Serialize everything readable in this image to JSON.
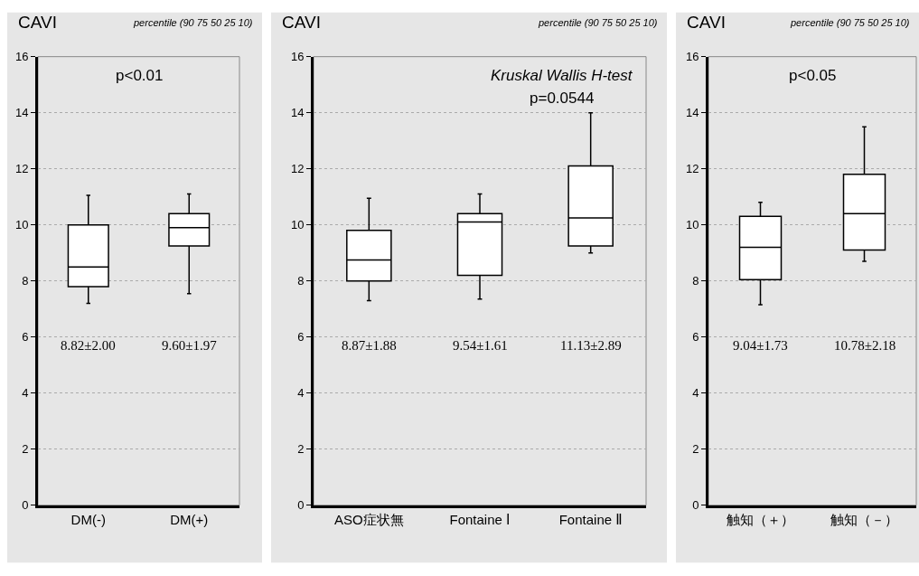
{
  "chart_data": [
    {
      "type": "box",
      "ylabel": "CAVI",
      "subtitle": "percentile (90 75 50 25 10)",
      "categories": [
        "DM(-)",
        "DM(+)"
      ],
      "color": "#ffffff",
      "boxes": [
        {
          "low": 7.2,
          "q1": 7.8,
          "median": 8.5,
          "q3": 10.0,
          "high": 11.05
        },
        {
          "low": 7.55,
          "q1": 9.25,
          "median": 9.9,
          "q3": 10.4,
          "high": 11.1
        }
      ],
      "ylim": [
        0,
        16
      ],
      "yticks": [
        0,
        2,
        4,
        6,
        8,
        10,
        12,
        14,
        16
      ],
      "grid": "y",
      "annotations": [
        "p<0.01",
        "8.82±2.00",
        "9.60±1.97"
      ]
    },
    {
      "type": "box",
      "ylabel": "CAVI",
      "subtitle": "percentile (90 75 50 25 10)",
      "categories": [
        "ASO症状無",
        "Fontaine Ⅰ",
        "Fontaine Ⅱ"
      ],
      "color": "#ffffff",
      "boxes": [
        {
          "low": 7.3,
          "q1": 8.0,
          "median": 8.75,
          "q3": 9.8,
          "high": 10.95
        },
        {
          "low": 7.35,
          "q1": 8.2,
          "median": 10.1,
          "q3": 10.4,
          "high": 11.1
        },
        {
          "low": 9.0,
          "q1": 9.25,
          "median": 10.25,
          "q3": 12.1,
          "high": 14.0
        }
      ],
      "ylim": [
        0,
        16
      ],
      "yticks": [
        0,
        2,
        4,
        6,
        8,
        10,
        12,
        14,
        16
      ],
      "grid": "y",
      "annotations": [
        "Kruskal Wallis H-test",
        "p=0.0544",
        "8.87±1.88",
        "9.54±1.61",
        "11.13±2.89"
      ]
    },
    {
      "type": "box",
      "ylabel": "CAVI",
      "subtitle": "percentile (90 75 50 25 10)",
      "categories": [
        "触知（＋）",
        "触知（－）"
      ],
      "color": "#ffffff",
      "boxes": [
        {
          "low": 7.15,
          "q1": 8.05,
          "median": 9.2,
          "q3": 10.3,
          "high": 10.8
        },
        {
          "low": 8.7,
          "q1": 9.1,
          "median": 10.4,
          "q3": 11.8,
          "high": 13.5
        }
      ],
      "ylim": [
        0,
        16
      ],
      "yticks": [
        0,
        2,
        4,
        6,
        8,
        10,
        12,
        14,
        16
      ],
      "grid": "y",
      "annotations": [
        "p<0.05",
        "9.04±1.73",
        "10.78±2.18"
      ]
    }
  ]
}
